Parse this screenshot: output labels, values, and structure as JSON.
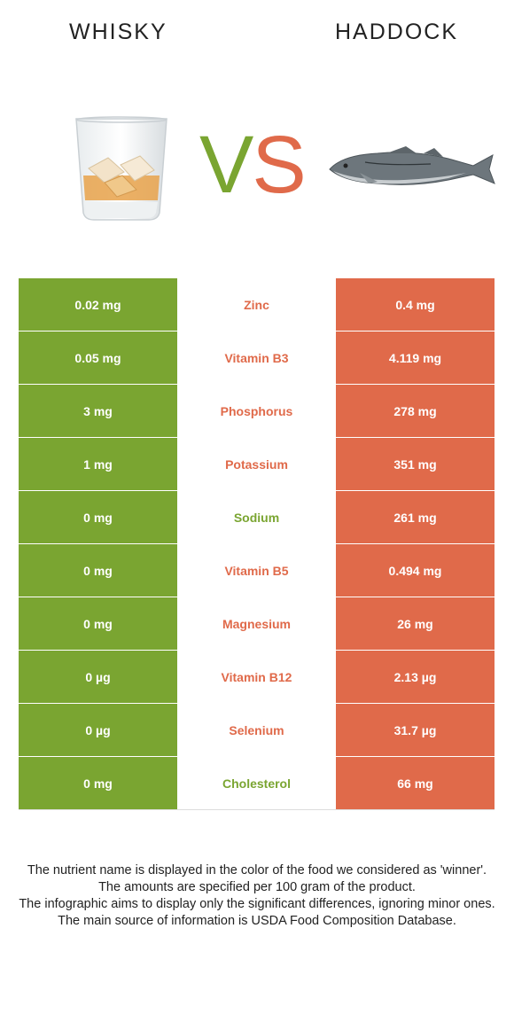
{
  "header": {
    "left_title": "WHISKY",
    "right_title": "HADDOCK",
    "vs_v": "V",
    "vs_s": "S"
  },
  "colors": {
    "whisky": "#7aa531",
    "haddock": "#e06a4a"
  },
  "rows": [
    {
      "nutrient": "Zinc",
      "whisky": "0.02 mg",
      "haddock": "0.4 mg",
      "winner": "haddock"
    },
    {
      "nutrient": "Vitamin B3",
      "whisky": "0.05 mg",
      "haddock": "4.119 mg",
      "winner": "haddock"
    },
    {
      "nutrient": "Phosphorus",
      "whisky": "3 mg",
      "haddock": "278 mg",
      "winner": "haddock"
    },
    {
      "nutrient": "Potassium",
      "whisky": "1 mg",
      "haddock": "351 mg",
      "winner": "haddock"
    },
    {
      "nutrient": "Sodium",
      "whisky": "0 mg",
      "haddock": "261 mg",
      "winner": "whisky"
    },
    {
      "nutrient": "Vitamin B5",
      "whisky": "0 mg",
      "haddock": "0.494 mg",
      "winner": "haddock"
    },
    {
      "nutrient": "Magnesium",
      "whisky": "0 mg",
      "haddock": "26 mg",
      "winner": "haddock"
    },
    {
      "nutrient": "Vitamin B12",
      "whisky": "0 µg",
      "haddock": "2.13 µg",
      "winner": "haddock"
    },
    {
      "nutrient": "Selenium",
      "whisky": "0 µg",
      "haddock": "31.7 µg",
      "winner": "haddock"
    },
    {
      "nutrient": "Cholesterol",
      "whisky": "0 mg",
      "haddock": "66 mg",
      "winner": "whisky"
    }
  ],
  "notes": {
    "line1": "The nutrient name is displayed in the color of the food we considered as 'winner'.",
    "line2": "The amounts are specified per 100 gram of the product.",
    "line3": "The infographic aims to display only the significant differences, ignoring minor ones.",
    "line4": "The main source of information is USDA Food Composition Database."
  }
}
